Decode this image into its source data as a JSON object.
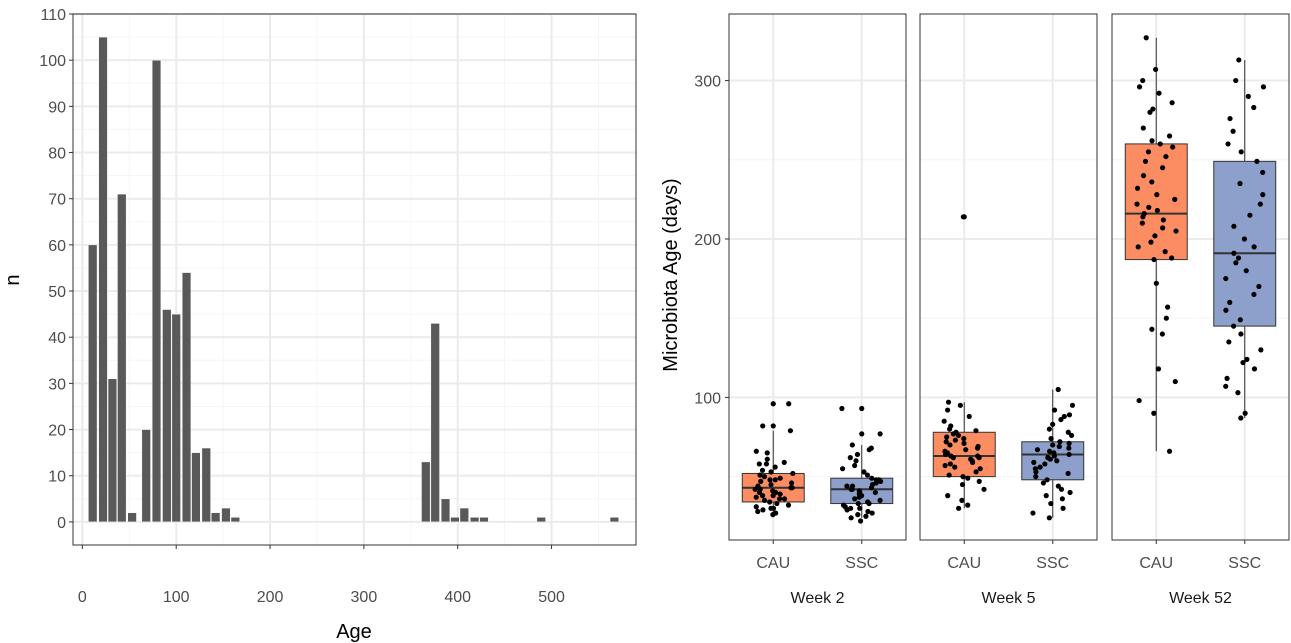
{
  "colors": {
    "bar_fill": "#595959",
    "grid_major": "#ebebeb",
    "grid_minor": "#f5f5f5",
    "panel_border": "#333333",
    "cau_fill": "#FC8D62",
    "ssc_fill": "#8DA0CB",
    "point": "#000000"
  },
  "chart_data": [
    {
      "type": "bar",
      "chart_subtype": "histogram",
      "xlabel": "Age",
      "ylabel": "n",
      "xlim": [
        -10,
        590
      ],
      "ylim": [
        -5,
        110
      ],
      "bin_width": 9.3,
      "grid": true,
      "x_ticks": [
        0,
        100,
        200,
        300,
        400,
        500
      ],
      "y_ticks": [
        0,
        10,
        20,
        30,
        40,
        50,
        60,
        70,
        80,
        90,
        100,
        110
      ],
      "bins": [
        {
          "x": 11,
          "n": 60
        },
        {
          "x": 22,
          "n": 105
        },
        {
          "x": 32,
          "n": 31
        },
        {
          "x": 42,
          "n": 71
        },
        {
          "x": 53,
          "n": 2
        },
        {
          "x": 68,
          "n": 20
        },
        {
          "x": 79,
          "n": 100
        },
        {
          "x": 90,
          "n": 46
        },
        {
          "x": 100,
          "n": 45
        },
        {
          "x": 111,
          "n": 54
        },
        {
          "x": 121,
          "n": 15
        },
        {
          "x": 132,
          "n": 16
        },
        {
          "x": 142,
          "n": 2
        },
        {
          "x": 153,
          "n": 3
        },
        {
          "x": 163,
          "n": 1
        },
        {
          "x": 366,
          "n": 13
        },
        {
          "x": 376,
          "n": 43
        },
        {
          "x": 387,
          "n": 5
        },
        {
          "x": 397,
          "n": 1
        },
        {
          "x": 407,
          "n": 3
        },
        {
          "x": 418,
          "n": 1
        },
        {
          "x": 428,
          "n": 1
        },
        {
          "x": 489,
          "n": 1
        },
        {
          "x": 567,
          "n": 1
        }
      ]
    },
    {
      "type": "box",
      "ylabel": "Microbiota Age (days)",
      "ylim": [
        10,
        342
      ],
      "y_ticks": [
        100,
        200,
        300
      ],
      "categories": [
        "CAU",
        "SSC"
      ],
      "grid": true,
      "facets": [
        {
          "label": "Week 2",
          "boxes": [
            {
              "group": "CAU",
              "q1": 34,
              "median": 43,
              "q3": 52,
              "whisker_low": 27,
              "whisker_high": 79,
              "outliers": [
                82,
                96
              ],
              "points": [
                26,
                27,
                28,
                29,
                30,
                30,
                31,
                32,
                33,
                34,
                35,
                36,
                36,
                37,
                38,
                38,
                39,
                40,
                40,
                41,
                42,
                42,
                43,
                43,
                44,
                45,
                46,
                47,
                48,
                48,
                49,
                50,
                51,
                52,
                53,
                54,
                56,
                58,
                58,
                59,
                61,
                65,
                66,
                79,
                82,
                96
              ]
            },
            {
              "group": "SSC",
              "q1": 33,
              "median": 42,
              "q3": 49,
              "whisker_low": 24,
              "whisker_high": 70,
              "outliers": [
                77,
                93
              ],
              "points": [
                22,
                24,
                25,
                26,
                27,
                28,
                29,
                30,
                30,
                31,
                32,
                33,
                33,
                34,
                35,
                36,
                37,
                38,
                39,
                40,
                40,
                41,
                42,
                42,
                43,
                44,
                44,
                45,
                46,
                47,
                48,
                48,
                49,
                51,
                53,
                55,
                57,
                60,
                62,
                64,
                67,
                68,
                70,
                77,
                93
              ]
            }
          ]
        },
        {
          "label": "Week 5",
          "boxes": [
            {
              "group": "CAU",
              "q1": 50,
              "median": 63,
              "q3": 78,
              "whisker_low": 30,
              "whisker_high": 97,
              "outliers": [
                214
              ],
              "points": [
                30,
                32,
                35,
                38,
                42,
                45,
                47,
                49,
                50,
                51,
                53,
                55,
                56,
                57,
                58,
                59,
                60,
                61,
                62,
                62,
                63,
                63,
                64,
                65,
                66,
                67,
                68,
                69,
                70,
                71,
                72,
                73,
                74,
                75,
                76,
                77,
                78,
                79,
                80,
                82,
                85,
                88,
                92,
                95,
                97,
                214
              ]
            },
            {
              "group": "SSC",
              "q1": 48,
              "median": 64,
              "q3": 72,
              "whisker_low": 24,
              "whisker_high": 105,
              "outliers": [],
              "points": [
                24,
                27,
                30,
                33,
                36,
                38,
                40,
                42,
                44,
                46,
                48,
                50,
                52,
                53,
                55,
                56,
                58,
                59,
                60,
                61,
                62,
                63,
                64,
                65,
                66,
                67,
                68,
                69,
                70,
                71,
                72,
                74,
                76,
                78,
                80,
                83,
                86,
                88,
                89,
                92,
                95,
                105
              ]
            }
          ]
        },
        {
          "label": "Week 52",
          "boxes": [
            {
              "group": "CAU",
              "q1": 187,
              "median": 216,
              "q3": 260,
              "whisker_low": 66,
              "whisker_high": 327,
              "outliers": [],
              "points": [
                66,
                90,
                98,
                110,
                118,
                140,
                143,
                150,
                157,
                172,
                187,
                188,
                192,
                195,
                198,
                202,
                205,
                207,
                210,
                212,
                214,
                216,
                218,
                220,
                222,
                225,
                228,
                232,
                236,
                240,
                245,
                249,
                252,
                255,
                258,
                260,
                262,
                265,
                270,
                280,
                282,
                286,
                292,
                296,
                300,
                307,
                327
              ]
            },
            {
              "group": "SSC",
              "q1": 145,
              "median": 191,
              "q3": 249,
              "whisker_low": 87,
              "whisker_high": 313,
              "outliers": [],
              "points": [
                87,
                90,
                103,
                107,
                112,
                118,
                122,
                124,
                130,
                135,
                140,
                145,
                149,
                155,
                160,
                165,
                170,
                175,
                180,
                185,
                188,
                191,
                195,
                200,
                208,
                215,
                222,
                228,
                235,
                242,
                249,
                255,
                260,
                268,
                276,
                283,
                290,
                296,
                300,
                313
              ]
            }
          ]
        }
      ]
    }
  ]
}
